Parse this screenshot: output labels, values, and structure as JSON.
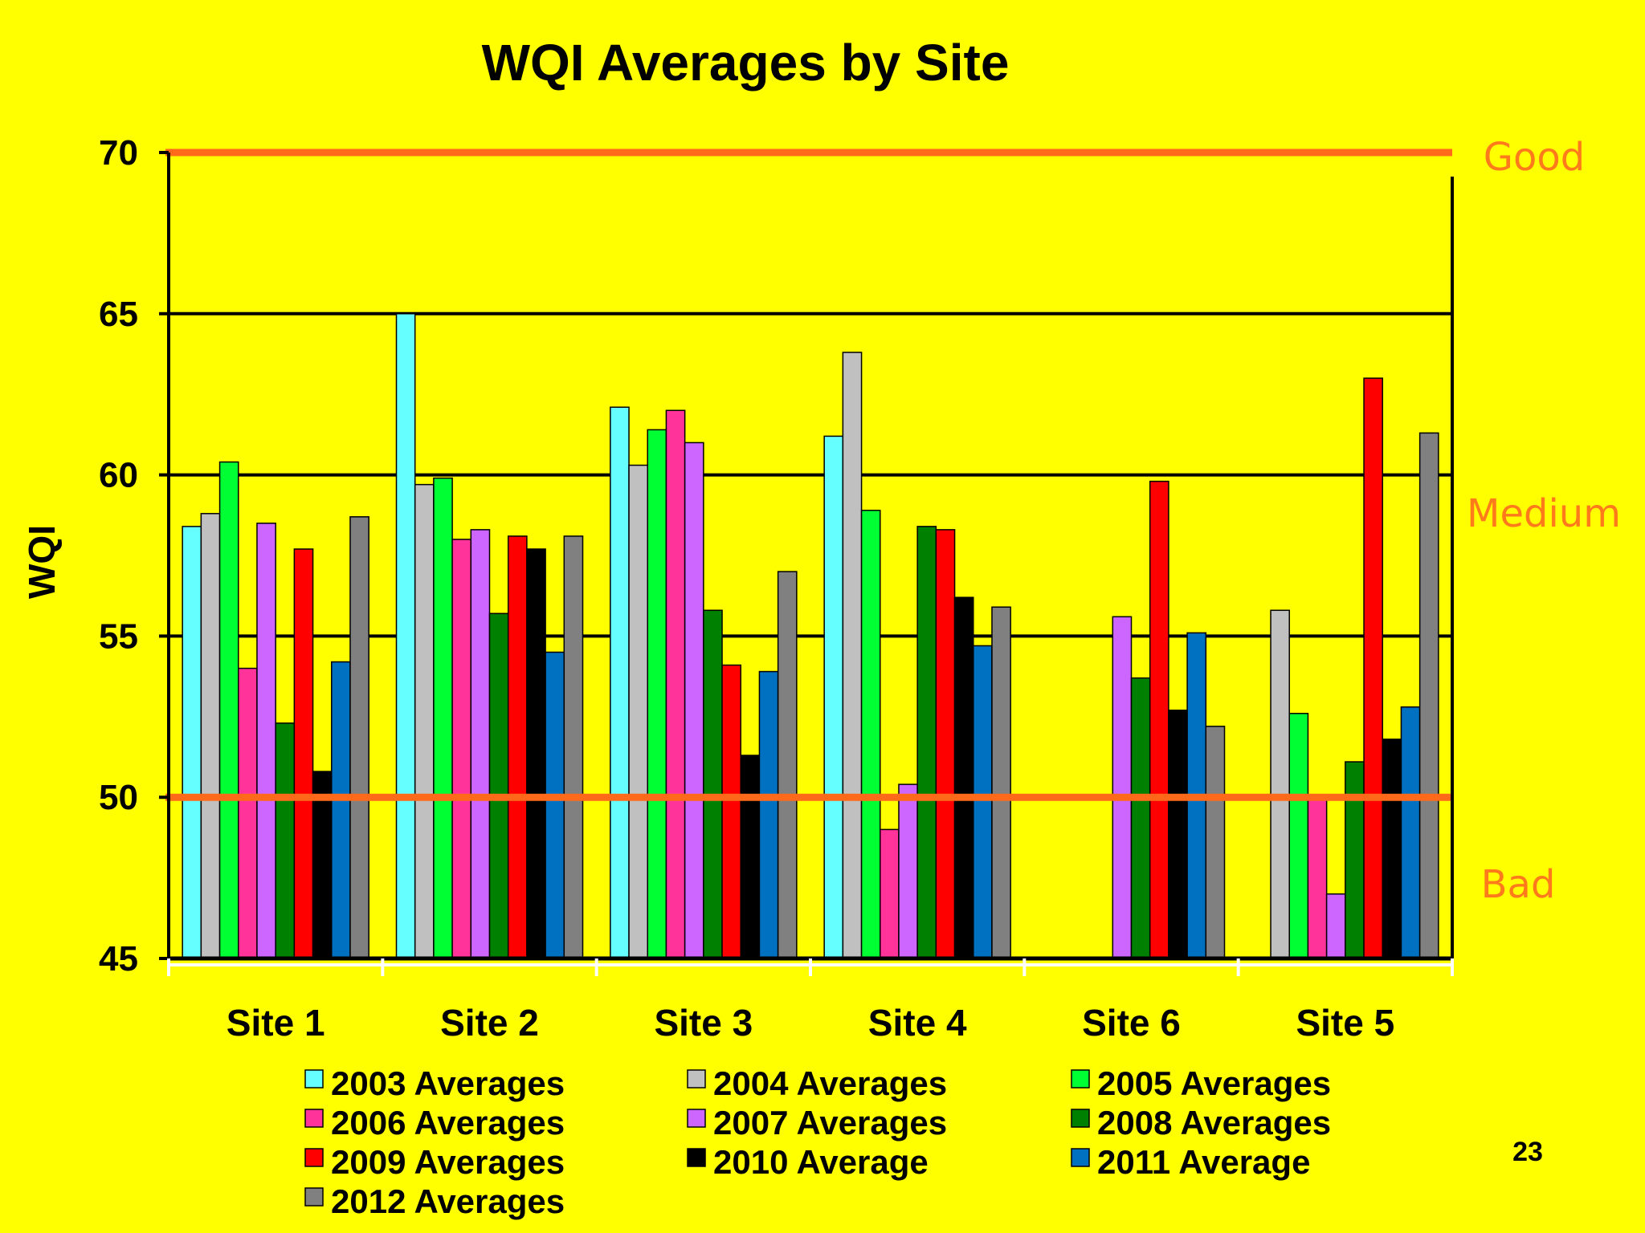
{
  "slide": {
    "page_number": "23"
  },
  "chart_data": {
    "type": "bar",
    "title": "WQI Averages by Site",
    "xlabel": "",
    "ylabel": "WQI",
    "ylim": [
      45,
      70
    ],
    "yticks": [
      "45",
      "50",
      "55",
      "60",
      "65",
      "70"
    ],
    "grid": true,
    "categories": [
      "Site 1",
      "Site 2",
      "Site 3",
      "Site 4",
      "Site 6",
      "Site 5"
    ],
    "series": [
      {
        "name": "2003 Averages",
        "color": "#66FFFF",
        "values": [
          58.4,
          65.0,
          62.1,
          61.2,
          null,
          null
        ]
      },
      {
        "name": "2004 Averages",
        "color": "#C0C0C0",
        "values": [
          58.8,
          59.7,
          60.3,
          63.8,
          null,
          55.8
        ]
      },
      {
        "name": "2005 Averages",
        "color": "#00FF33",
        "values": [
          60.4,
          59.9,
          61.4,
          58.9,
          null,
          52.6
        ]
      },
      {
        "name": "2006 Averages",
        "color": "#FF3399",
        "values": [
          54.0,
          58.0,
          62.0,
          49.0,
          null,
          50.0
        ]
      },
      {
        "name": "2007 Averages",
        "color": "#CC66FF",
        "values": [
          58.5,
          58.3,
          61.0,
          50.4,
          55.6,
          47.0
        ]
      },
      {
        "name": "2008 Averages",
        "color": "#008000",
        "values": [
          52.3,
          55.7,
          55.8,
          58.4,
          53.7,
          51.1
        ]
      },
      {
        "name": "2009 Averages",
        "color": "#FF0000",
        "values": [
          57.7,
          58.1,
          54.1,
          58.3,
          59.8,
          63.0
        ]
      },
      {
        "name": "2010 Average",
        "color": "#000000",
        "values": [
          50.8,
          57.7,
          51.3,
          56.2,
          52.7,
          51.8
        ]
      },
      {
        "name": "2011 Average",
        "color": "#0070C0",
        "values": [
          54.2,
          54.5,
          53.9,
          54.7,
          55.1,
          52.8
        ]
      },
      {
        "name": "2012 Averages",
        "color": "#808080",
        "values": [
          58.7,
          58.1,
          57.0,
          55.9,
          52.2,
          61.3
        ]
      }
    ],
    "reference_lines": [
      {
        "value": 70,
        "color": "#FF6A1A"
      },
      {
        "value": 50,
        "color": "#FF6A1A"
      }
    ],
    "zone_labels": [
      "Good",
      "Medium",
      "Bad"
    ],
    "zone_color": "#FF7A1A",
    "legend_position": "bottom"
  }
}
